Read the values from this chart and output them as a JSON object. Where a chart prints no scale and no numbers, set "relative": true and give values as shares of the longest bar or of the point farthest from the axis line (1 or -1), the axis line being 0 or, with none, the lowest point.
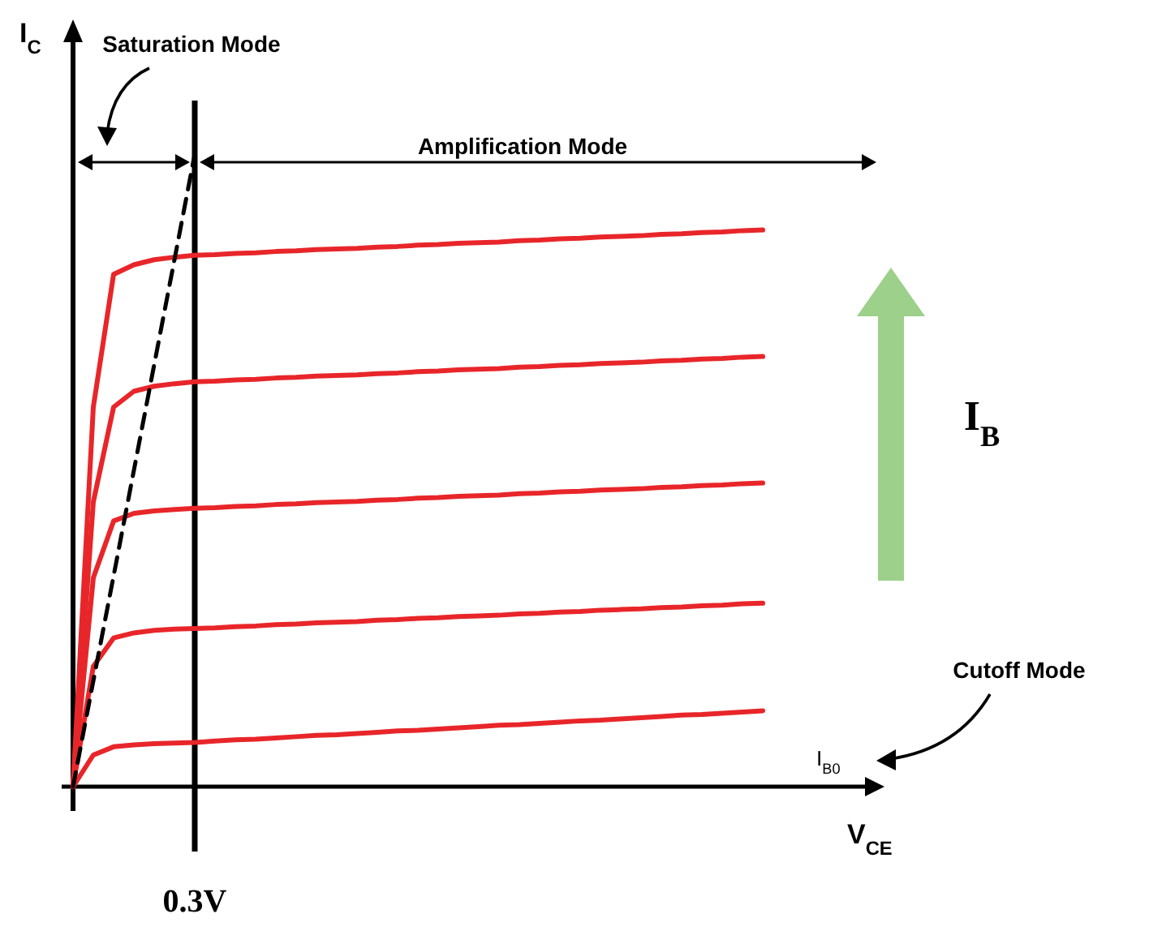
{
  "chart_data": {
    "type": "line",
    "relative": true,
    "xlabel": "V$_{CE}$",
    "ylabel": "I$_{C}$",
    "categories": [
      null,
      null,
      null,
      null,
      null,
      null,
      null,
      null,
      null,
      null,
      null,
      null,
      null,
      null,
      null,
      null,
      null,
      null,
      null,
      null,
      null,
      null,
      null,
      null,
      null,
      null,
      null,
      null,
      null,
      null,
      null,
      null,
      null,
      null,
      null,
      null,
      null,
      null,
      null,
      null,
      null
    ],
    "annotations": [
      "Saturation Mode",
      "Amplification Mode",
      "Cutoff Mode",
      "I$_{B0}$",
      "I$_{B}$",
      "0.3V"
    ],
    "series": [
      {
        "type": "line",
        "color": "#e8262a",
        "line_style": "solid",
        "values": [
          0,
          0.6,
          0.81,
          0.825,
          0.833,
          0.837,
          0.84,
          0.841,
          0.843,
          0.844,
          0.846,
          0.847,
          0.849,
          0.85,
          0.851,
          0.853,
          0.854,
          0.856,
          0.857,
          0.859,
          0.86,
          0.861,
          0.863,
          0.864,
          0.866,
          0.867,
          0.869,
          0.87,
          0.871,
          0.873,
          0.874,
          0.876,
          0.877,
          0.879,
          0.88,
          null,
          null,
          null,
          null,
          null,
          null
        ]
      },
      {
        "type": "line",
        "color": "#e8262a",
        "line_style": "solid",
        "values": [
          0,
          0.45,
          0.6,
          0.625,
          0.633,
          0.637,
          0.64,
          0.641,
          0.643,
          0.644,
          0.646,
          0.647,
          0.649,
          0.65,
          0.651,
          0.653,
          0.654,
          0.656,
          0.657,
          0.659,
          0.66,
          0.661,
          0.663,
          0.664,
          0.666,
          0.667,
          0.669,
          0.67,
          0.671,
          0.673,
          0.674,
          0.676,
          0.677,
          0.679,
          0.68,
          null,
          null,
          null,
          null,
          null,
          null
        ]
      },
      {
        "type": "line",
        "color": "#e8262a",
        "line_style": "solid",
        "values": [
          0,
          0.33,
          0.42,
          0.432,
          0.436,
          0.438,
          0.44,
          0.441,
          0.443,
          0.444,
          0.446,
          0.447,
          0.449,
          0.45,
          0.451,
          0.453,
          0.454,
          0.456,
          0.457,
          0.459,
          0.46,
          0.461,
          0.463,
          0.464,
          0.466,
          0.467,
          0.469,
          0.47,
          0.471,
          0.473,
          0.474,
          0.476,
          0.477,
          0.479,
          0.48,
          null,
          null,
          null,
          null,
          null,
          null
        ]
      },
      {
        "type": "line",
        "color": "#e8262a",
        "line_style": "solid",
        "values": [
          0,
          0.19,
          0.235,
          0.243,
          0.247,
          0.249,
          0.25,
          0.251,
          0.253,
          0.254,
          0.256,
          0.257,
          0.259,
          0.26,
          0.261,
          0.263,
          0.264,
          0.266,
          0.267,
          0.269,
          0.27,
          0.271,
          0.273,
          0.274,
          0.276,
          0.277,
          0.279,
          0.28,
          0.281,
          0.283,
          0.284,
          0.286,
          0.287,
          0.289,
          0.29,
          null,
          null,
          null,
          null,
          null,
          null
        ]
      },
      {
        "type": "line",
        "color": "#e8262a",
        "line_style": "solid",
        "values": [
          0,
          0.05,
          0.063,
          0.066,
          0.068,
          0.069,
          0.07,
          0.072,
          0.074,
          0.075,
          0.077,
          0.079,
          0.081,
          0.082,
          0.084,
          0.086,
          0.088,
          0.089,
          0.091,
          0.093,
          0.095,
          0.097,
          0.098,
          0.1,
          0.102,
          0.104,
          0.105,
          0.107,
          0.109,
          0.111,
          0.113,
          0.114,
          0.116,
          0.118,
          0.12,
          null,
          null,
          null,
          null,
          null,
          null
        ]
      },
      {
        "type": "line",
        "color": "#000000",
        "line_style": "dashed",
        "values": [
          0,
          0.167,
          0.333,
          0.5,
          0.667,
          0.833,
          1,
          null,
          null,
          null,
          null,
          null,
          null,
          null,
          null,
          null,
          null,
          null,
          null,
          null,
          null,
          null,
          null,
          null,
          null,
          null,
          null,
          null,
          null,
          null,
          null,
          null,
          null,
          null,
          null,
          null,
          null,
          null,
          null,
          null,
          null
        ]
      }
    ]
  }
}
